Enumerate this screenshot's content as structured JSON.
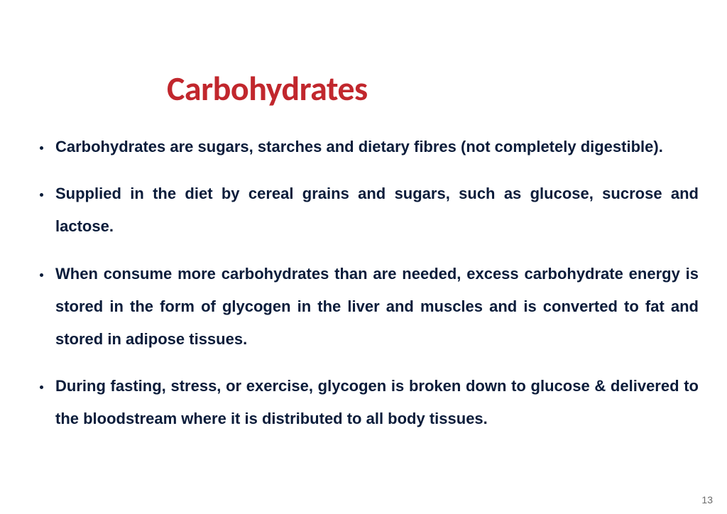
{
  "slide": {
    "title": "Carbohydrates",
    "title_color": "#c1272d",
    "title_fontsize": 48,
    "text_color": "#0b1c3a",
    "body_fontsize": 22,
    "background_color": "#ffffff",
    "bullets": [
      "Carbohydrates are sugars, starches and dietary fibres (not completely digestible).",
      "Supplied in the diet by cereal grains and sugars, such as glucose, sucrose and lactose.",
      "When consume more carbohydrates than are needed, excess carbohydrate energy is stored in the form of glycogen in the liver and muscles and is converted to fat and stored in adipose tissues.",
      "During fasting, stress, or exercise, glycogen is broken down to glucose & delivered to the bloodstream where it is distributed to all body tissues."
    ],
    "page_number": "13"
  }
}
